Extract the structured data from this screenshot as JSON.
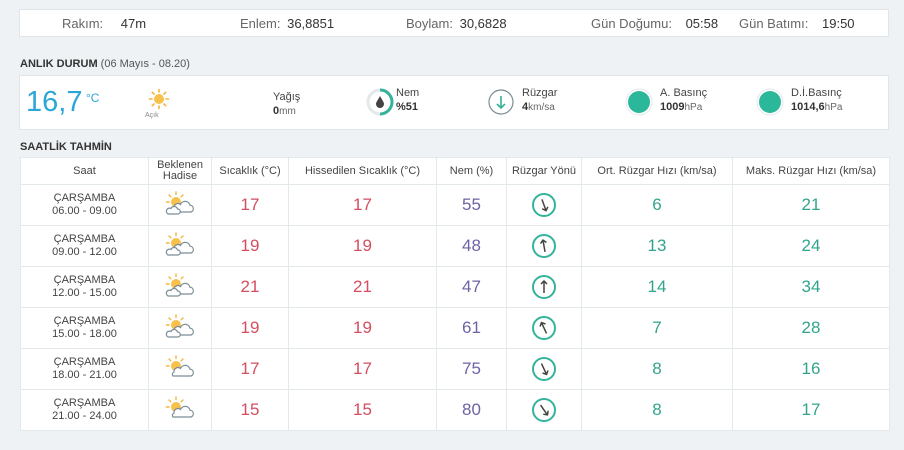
{
  "topbar": {
    "rakim_label": "Rakım:",
    "rakim_value": "47m",
    "enlem_label": "Enlem:",
    "enlem_value": "36,8851",
    "boylam_label": "Boylam:",
    "boylam_value": "30,6828",
    "gundogumu_label": "Gün Doğumu:",
    "gundogumu_value": "05:58",
    "gunbatimi_label": "Gün Batımı:",
    "gunbatimi_value": "19:50"
  },
  "current": {
    "section_title": "ANLIK DURUM",
    "section_subtitle": "(06 Mayıs - 08.20)",
    "temperature": "16,7",
    "unit": "°C",
    "condition": "Açık",
    "condition_icon": "sun-icon",
    "yagis_label": "Yağış",
    "yagis_value": "0",
    "yagis_unit": "mm",
    "nem_label": "Nem",
    "nem_value": "%51",
    "ruzgar_label": "Rüzgar",
    "ruzgar_value": "4",
    "ruzgar_unit": "km/sa",
    "abasinc_label": "A. Basınç",
    "abasinc_value": "1009",
    "abasinc_unit": "hPa",
    "dibasinc_label": "D.İ.Basınç",
    "dibasinc_value": "1014,6",
    "dibasinc_unit": "hPa",
    "accent_color": "#2aa7d8",
    "pressure_color": "#2bb89a"
  },
  "forecast": {
    "section_title": "SAATLİK TAHMİN",
    "headers": {
      "saat": "Saat",
      "hadise_1": "Beklenen",
      "hadise_2": "Hadise",
      "sicaklik": "Sıcaklık (°C)",
      "hissedilen": "Hissedilen Sıcaklık (°C)",
      "nem": "Nem (%)",
      "yon": "Rüzgar Yönü",
      "ort": "Ort. Rüzgar Hızı (km/sa)",
      "maks": "Maks. Rüzgar Hızı (km/sa)"
    },
    "rows": [
      {
        "day": "ÇARŞAMBA",
        "time": "06.00 - 09.00",
        "icon": "partly-cloudy-icon",
        "temp": "17",
        "feel": "17",
        "hum": "55",
        "dir_deg": 160,
        "avg": "6",
        "max": "21"
      },
      {
        "day": "ÇARŞAMBA",
        "time": "09.00 - 12.00",
        "icon": "partly-cloudy-icon",
        "temp": "19",
        "feel": "19",
        "hum": "48",
        "dir_deg": -10,
        "avg": "13",
        "max": "24"
      },
      {
        "day": "ÇARŞAMBA",
        "time": "12.00 - 15.00",
        "icon": "partly-cloudy-icon",
        "temp": "21",
        "feel": "21",
        "hum": "47",
        "dir_deg": 0,
        "avg": "14",
        "max": "34"
      },
      {
        "day": "ÇARŞAMBA",
        "time": "15.00 - 18.00",
        "icon": "partly-cloudy-icon",
        "temp": "19",
        "feel": "19",
        "hum": "61",
        "dir_deg": -25,
        "avg": "7",
        "max": "28"
      },
      {
        "day": "ÇARŞAMBA",
        "time": "18.00 - 21.00",
        "icon": "mostly-sunny-icon",
        "temp": "17",
        "feel": "17",
        "hum": "75",
        "dir_deg": 155,
        "avg": "8",
        "max": "16"
      },
      {
        "day": "ÇARŞAMBA",
        "time": "21.00 - 24.00",
        "icon": "mostly-sunny-icon",
        "temp": "15",
        "feel": "15",
        "hum": "80",
        "dir_deg": 145,
        "avg": "8",
        "max": "17"
      }
    ]
  }
}
